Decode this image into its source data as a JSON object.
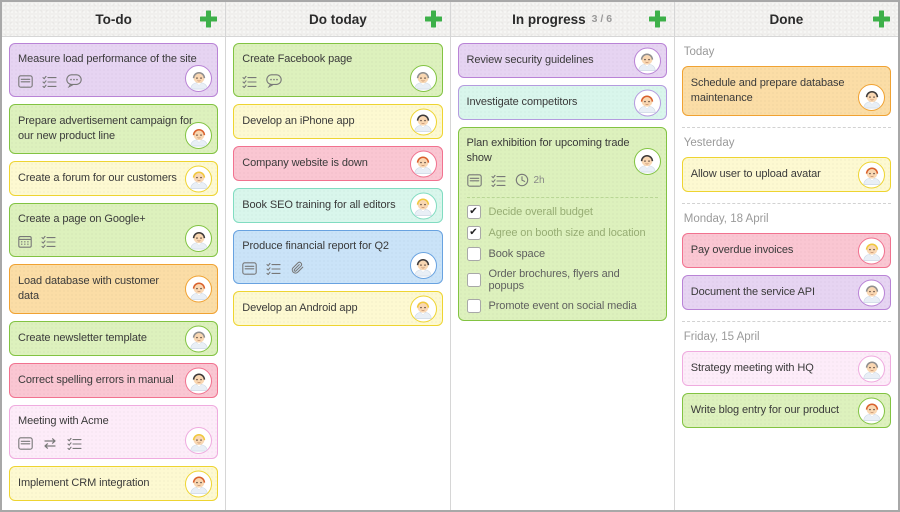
{
  "board": {
    "columns": [
      {
        "title": "To-do",
        "add_button_icon": "plus-icon",
        "cards": [
          {
            "title": "Measure load performance of the site",
            "color": "purple",
            "badges": [
              "note-icon",
              "checklist-icon",
              "comment-icon"
            ],
            "avatar": "gray-hair"
          },
          {
            "title": "Prepare advertisement campaign for our new product line",
            "color": "green",
            "avatar": "red-hair"
          },
          {
            "title": "Create a forum for our customers",
            "color": "yellow",
            "avatar": "blonde-hair"
          },
          {
            "title": "Create a page on Google+",
            "color": "green",
            "badges": [
              "calendar-icon",
              "checklist-icon"
            ],
            "avatar": "black-hair"
          },
          {
            "title": "Load database with customer data",
            "color": "orange",
            "avatar": "red-hair"
          },
          {
            "title": "Create newsletter template",
            "color": "green",
            "avatar": "gray-hair"
          },
          {
            "title": "Correct spelling errors in manual",
            "color": "pink",
            "avatar": "black-hair"
          },
          {
            "title": "Meeting with Acme",
            "color": "rose",
            "badges": [
              "note-icon",
              "repeat-icon",
              "checklist-icon"
            ],
            "avatar": "blonde-hair"
          },
          {
            "title": "Implement CRM integration",
            "color": "yellow",
            "avatar": "red-hair"
          }
        ]
      },
      {
        "title": "Do today",
        "add_button_icon": "plus-icon",
        "cards": [
          {
            "title": "Create Facebook page",
            "color": "green",
            "badges": [
              "checklist-icon",
              "comment-icon"
            ],
            "avatar": "gray-hair"
          },
          {
            "title": "Develop an iPhone app",
            "color": "yellow",
            "avatar": "black-hair"
          },
          {
            "title": "Company website is down",
            "color": "pink",
            "avatar": "red-hair"
          },
          {
            "title": "Book SEO training for all editors",
            "color": "mint",
            "avatar": "blonde-hair"
          },
          {
            "title": "Produce financial report for Q2",
            "color": "blue",
            "badges": [
              "note-icon",
              "checklist-icon",
              "paperclip-icon"
            ],
            "avatar": "black-hair"
          },
          {
            "title": "Develop an Android app",
            "color": "yellow",
            "avatar": "blonde-hair"
          }
        ]
      },
      {
        "title": "In progress",
        "count": "3 / 6",
        "add_button_icon": "plus-icon",
        "cards": [
          {
            "title": "Review security guidelines",
            "color": "purple",
            "avatar": "gray-hair"
          },
          {
            "title": "Investigate competitors",
            "color": "mintpurple",
            "avatar": "red-hair"
          },
          {
            "title": "Plan exhibition for upcoming trade show",
            "color": "green",
            "badges": [
              "note-icon",
              "checklist-icon",
              "clock-icon"
            ],
            "time": "2h",
            "avatar": "black-hair",
            "checklist": [
              {
                "label": "Decide overall budget",
                "checked": true
              },
              {
                "label": "Agree on booth size and location",
                "checked": true
              },
              {
                "label": "Book space",
                "checked": false
              },
              {
                "label": "Order brochures, flyers and popups",
                "checked": false
              },
              {
                "label": "Promote event on social media",
                "checked": false
              }
            ]
          }
        ]
      },
      {
        "title": "Done",
        "add_button_icon": "plus-icon",
        "groups": [
          {
            "label": "Today",
            "cards": [
              {
                "title": "Schedule and prepare database maintenance",
                "color": "orange",
                "avatar": "black-hair"
              }
            ]
          },
          {
            "label": "Yesterday",
            "cards": [
              {
                "title": "Allow user to upload avatar",
                "color": "yellow",
                "avatar": "red-hair"
              }
            ]
          },
          {
            "label": "Monday, 18 April",
            "cards": [
              {
                "title": "Pay overdue invoices",
                "color": "pink",
                "avatar": "blonde-hair"
              },
              {
                "title": "Document the service API",
                "color": "purple",
                "avatar": "gray-hair"
              }
            ]
          },
          {
            "label": "Friday, 15 April",
            "cards": [
              {
                "title": "Strategy meeting with HQ",
                "color": "rose",
                "avatar": "gray-hair"
              },
              {
                "title": "Write blog entry for our product",
                "color": "green",
                "avatar": "red-hair"
              }
            ]
          }
        ]
      }
    ]
  },
  "card_colors": {
    "purple": {
      "bg": "#e6d4f2",
      "border": "#b983d6"
    },
    "green": {
      "bg": "#ddf1bd",
      "border": "#82c342"
    },
    "yellow": {
      "bg": "#fdf9d1",
      "border": "#eed431"
    },
    "orange": {
      "bg": "#fbdda6",
      "border": "#f0a232"
    },
    "pink": {
      "bg": "#fac6d2",
      "border": "#f1728f"
    },
    "rose": {
      "bg": "#fdecf9",
      "border": "#efabdf"
    },
    "mint": {
      "bg": "#d9f6ec",
      "border": "#81dcc1"
    },
    "blue": {
      "bg": "#cae3f8",
      "border": "#68a2e0"
    },
    "mintpurple": {
      "bg": "#d9f6ec",
      "border": "#b49bdf"
    }
  },
  "avatar_colors": {
    "gray-hair": "#8f8f8f",
    "red-hair": "#d9612d",
    "blonde-hair": "#f0c83d",
    "black-hair": "#3d3a3a"
  },
  "ui": {
    "plus_green": "#3db049",
    "header_bg": "#f0efed",
    "muted_text": "#9a9a9a"
  }
}
